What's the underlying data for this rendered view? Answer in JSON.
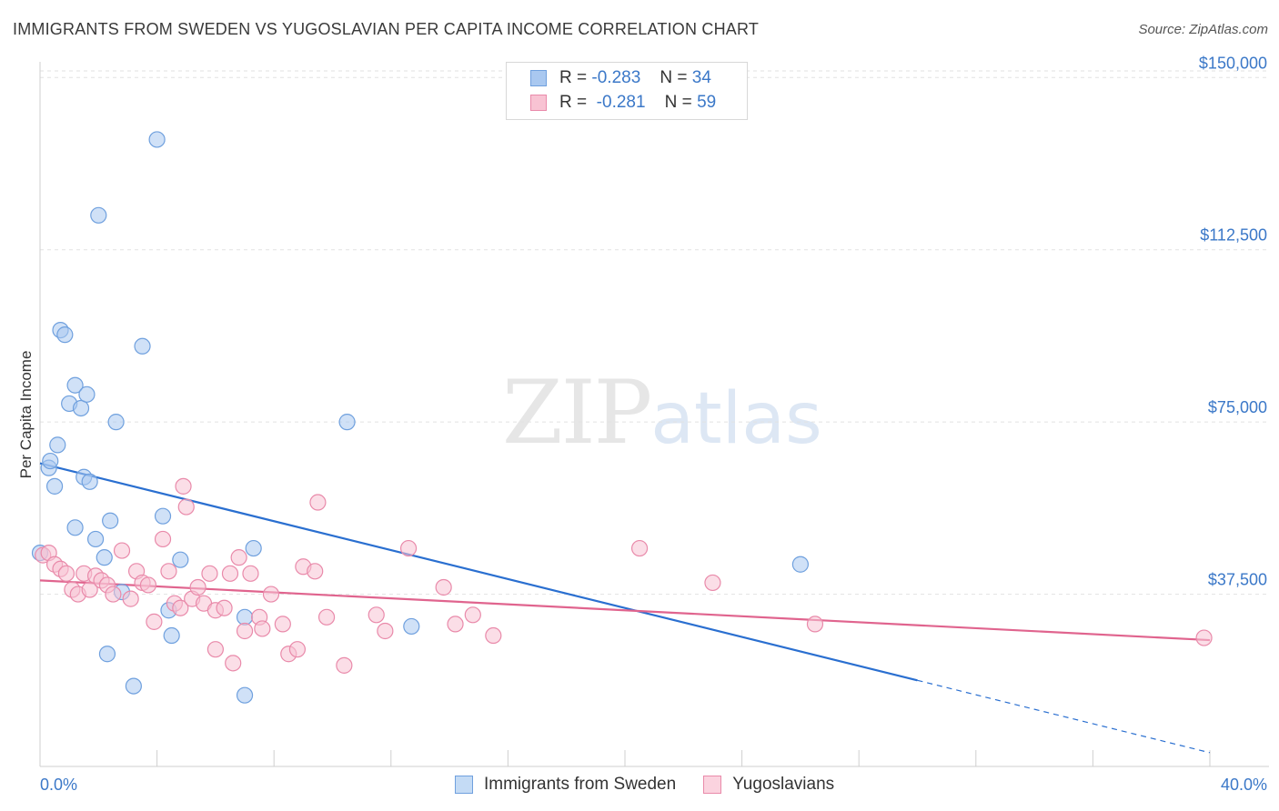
{
  "header": {
    "title": "IMMIGRANTS FROM SWEDEN VS YUGOSLAVIAN PER CAPITA INCOME CORRELATION CHART",
    "source": "Source: ZipAtlas.com"
  },
  "watermark": {
    "zip": "ZIP",
    "atlas": "atlas"
  },
  "legend": {
    "rows": [
      {
        "r_label": "R =",
        "r_value": "-0.283",
        "n_label": "N =",
        "n_value": "34",
        "color": "#a9c8f0",
        "border": "#6fa0de"
      },
      {
        "r_label": "R =",
        "r_value": "-0.281",
        "n_label": "N =",
        "n_value": "59",
        "color": "#f8c3d3",
        "border": "#e98aaa"
      }
    ]
  },
  "bottom_legend": {
    "items": [
      {
        "label": "Immigrants from Sweden",
        "color": "#c4dbf5",
        "border": "#6fa0de"
      },
      {
        "label": "Yugoslavians",
        "color": "#fbd3df",
        "border": "#e98aaa"
      }
    ]
  },
  "chart_data": {
    "type": "scatter",
    "title": "IMMIGRANTS FROM SWEDEN VS YUGOSLAVIAN PER CAPITA INCOME CORRELATION CHART",
    "xlabel": "",
    "ylabel": "Per Capita Income",
    "xlim": [
      0,
      40
    ],
    "ylim": [
      0,
      155000
    ],
    "x_tick_labels": [
      "0.0%",
      "40.0%"
    ],
    "y_ticks": [
      37500,
      75000,
      112500,
      150000
    ],
    "y_tick_labels": [
      "$37,500",
      "$75,000",
      "$112,500",
      "$150,000"
    ],
    "grid": true,
    "series": [
      {
        "name": "Immigrants from Sweden",
        "color": "#6fa0de",
        "fill": "#a9c8f0",
        "line_color": "#2a6fd0",
        "trend": {
          "x0": 0,
          "y0": 66000,
          "x1_solid": 30,
          "x1": 40,
          "y1": 3000
        },
        "points": [
          [
            0.0,
            46500
          ],
          [
            0.3,
            65000
          ],
          [
            0.35,
            66500
          ],
          [
            0.5,
            61000
          ],
          [
            0.6,
            70000
          ],
          [
            0.7,
            95000
          ],
          [
            0.85,
            94000
          ],
          [
            1.0,
            79000
          ],
          [
            1.2,
            83000
          ],
          [
            1.4,
            78000
          ],
          [
            1.5,
            63000
          ],
          [
            1.6,
            81000
          ],
          [
            1.7,
            62000
          ],
          [
            1.2,
            52000
          ],
          [
            1.9,
            49500
          ],
          [
            2.0,
            120000
          ],
          [
            2.2,
            45500
          ],
          [
            2.4,
            53500
          ],
          [
            2.6,
            75000
          ],
          [
            2.8,
            38000
          ],
          [
            2.3,
            24500
          ],
          [
            3.2,
            17500
          ],
          [
            3.5,
            91500
          ],
          [
            4.0,
            136500
          ],
          [
            4.2,
            54500
          ],
          [
            4.4,
            34000
          ],
          [
            4.5,
            28500
          ],
          [
            4.8,
            45000
          ],
          [
            7.0,
            32500
          ],
          [
            7.3,
            47500
          ],
          [
            7.0,
            15500
          ],
          [
            10.5,
            75000
          ],
          [
            12.7,
            30500
          ],
          [
            26.0,
            44000
          ]
        ]
      },
      {
        "name": "Yugoslavians",
        "color": "#e98aaa",
        "fill": "#f8c3d3",
        "line_color": "#e0648e",
        "trend": {
          "x0": 0,
          "y0": 40500,
          "x1": 40,
          "y1": 27500
        },
        "points": [
          [
            0.1,
            46000
          ],
          [
            0.3,
            46500
          ],
          [
            0.5,
            44000
          ],
          [
            0.7,
            43000
          ],
          [
            0.9,
            42000
          ],
          [
            1.1,
            38500
          ],
          [
            1.3,
            37500
          ],
          [
            1.5,
            42000
          ],
          [
            1.7,
            38500
          ],
          [
            1.9,
            41500
          ],
          [
            2.1,
            40500
          ],
          [
            2.3,
            39500
          ],
          [
            2.5,
            37500
          ],
          [
            2.8,
            47000
          ],
          [
            3.1,
            36500
          ],
          [
            3.3,
            42500
          ],
          [
            3.5,
            40000
          ],
          [
            3.7,
            39500
          ],
          [
            3.9,
            31500
          ],
          [
            4.2,
            49500
          ],
          [
            4.4,
            42500
          ],
          [
            4.6,
            35500
          ],
          [
            4.8,
            34500
          ],
          [
            4.9,
            61000
          ],
          [
            5.0,
            56500
          ],
          [
            5.2,
            36500
          ],
          [
            5.4,
            39000
          ],
          [
            5.6,
            35500
          ],
          [
            5.8,
            42000
          ],
          [
            6.0,
            34000
          ],
          [
            6.0,
            25500
          ],
          [
            6.3,
            34500
          ],
          [
            6.5,
            42000
          ],
          [
            6.6,
            22500
          ],
          [
            6.8,
            45500
          ],
          [
            7.0,
            29500
          ],
          [
            7.2,
            42000
          ],
          [
            7.5,
            32500
          ],
          [
            7.6,
            30000
          ],
          [
            7.9,
            37500
          ],
          [
            8.3,
            31000
          ],
          [
            8.5,
            24500
          ],
          [
            8.8,
            25500
          ],
          [
            9.0,
            43500
          ],
          [
            9.4,
            42500
          ],
          [
            9.5,
            57500
          ],
          [
            9.8,
            32500
          ],
          [
            10.4,
            22000
          ],
          [
            11.5,
            33000
          ],
          [
            11.8,
            29500
          ],
          [
            12.6,
            47500
          ],
          [
            13.8,
            39000
          ],
          [
            14.2,
            31000
          ],
          [
            14.8,
            33000
          ],
          [
            15.5,
            28500
          ],
          [
            20.5,
            47500
          ],
          [
            23.0,
            40000
          ],
          [
            26.5,
            31000
          ],
          [
            39.8,
            28000
          ]
        ]
      }
    ]
  }
}
